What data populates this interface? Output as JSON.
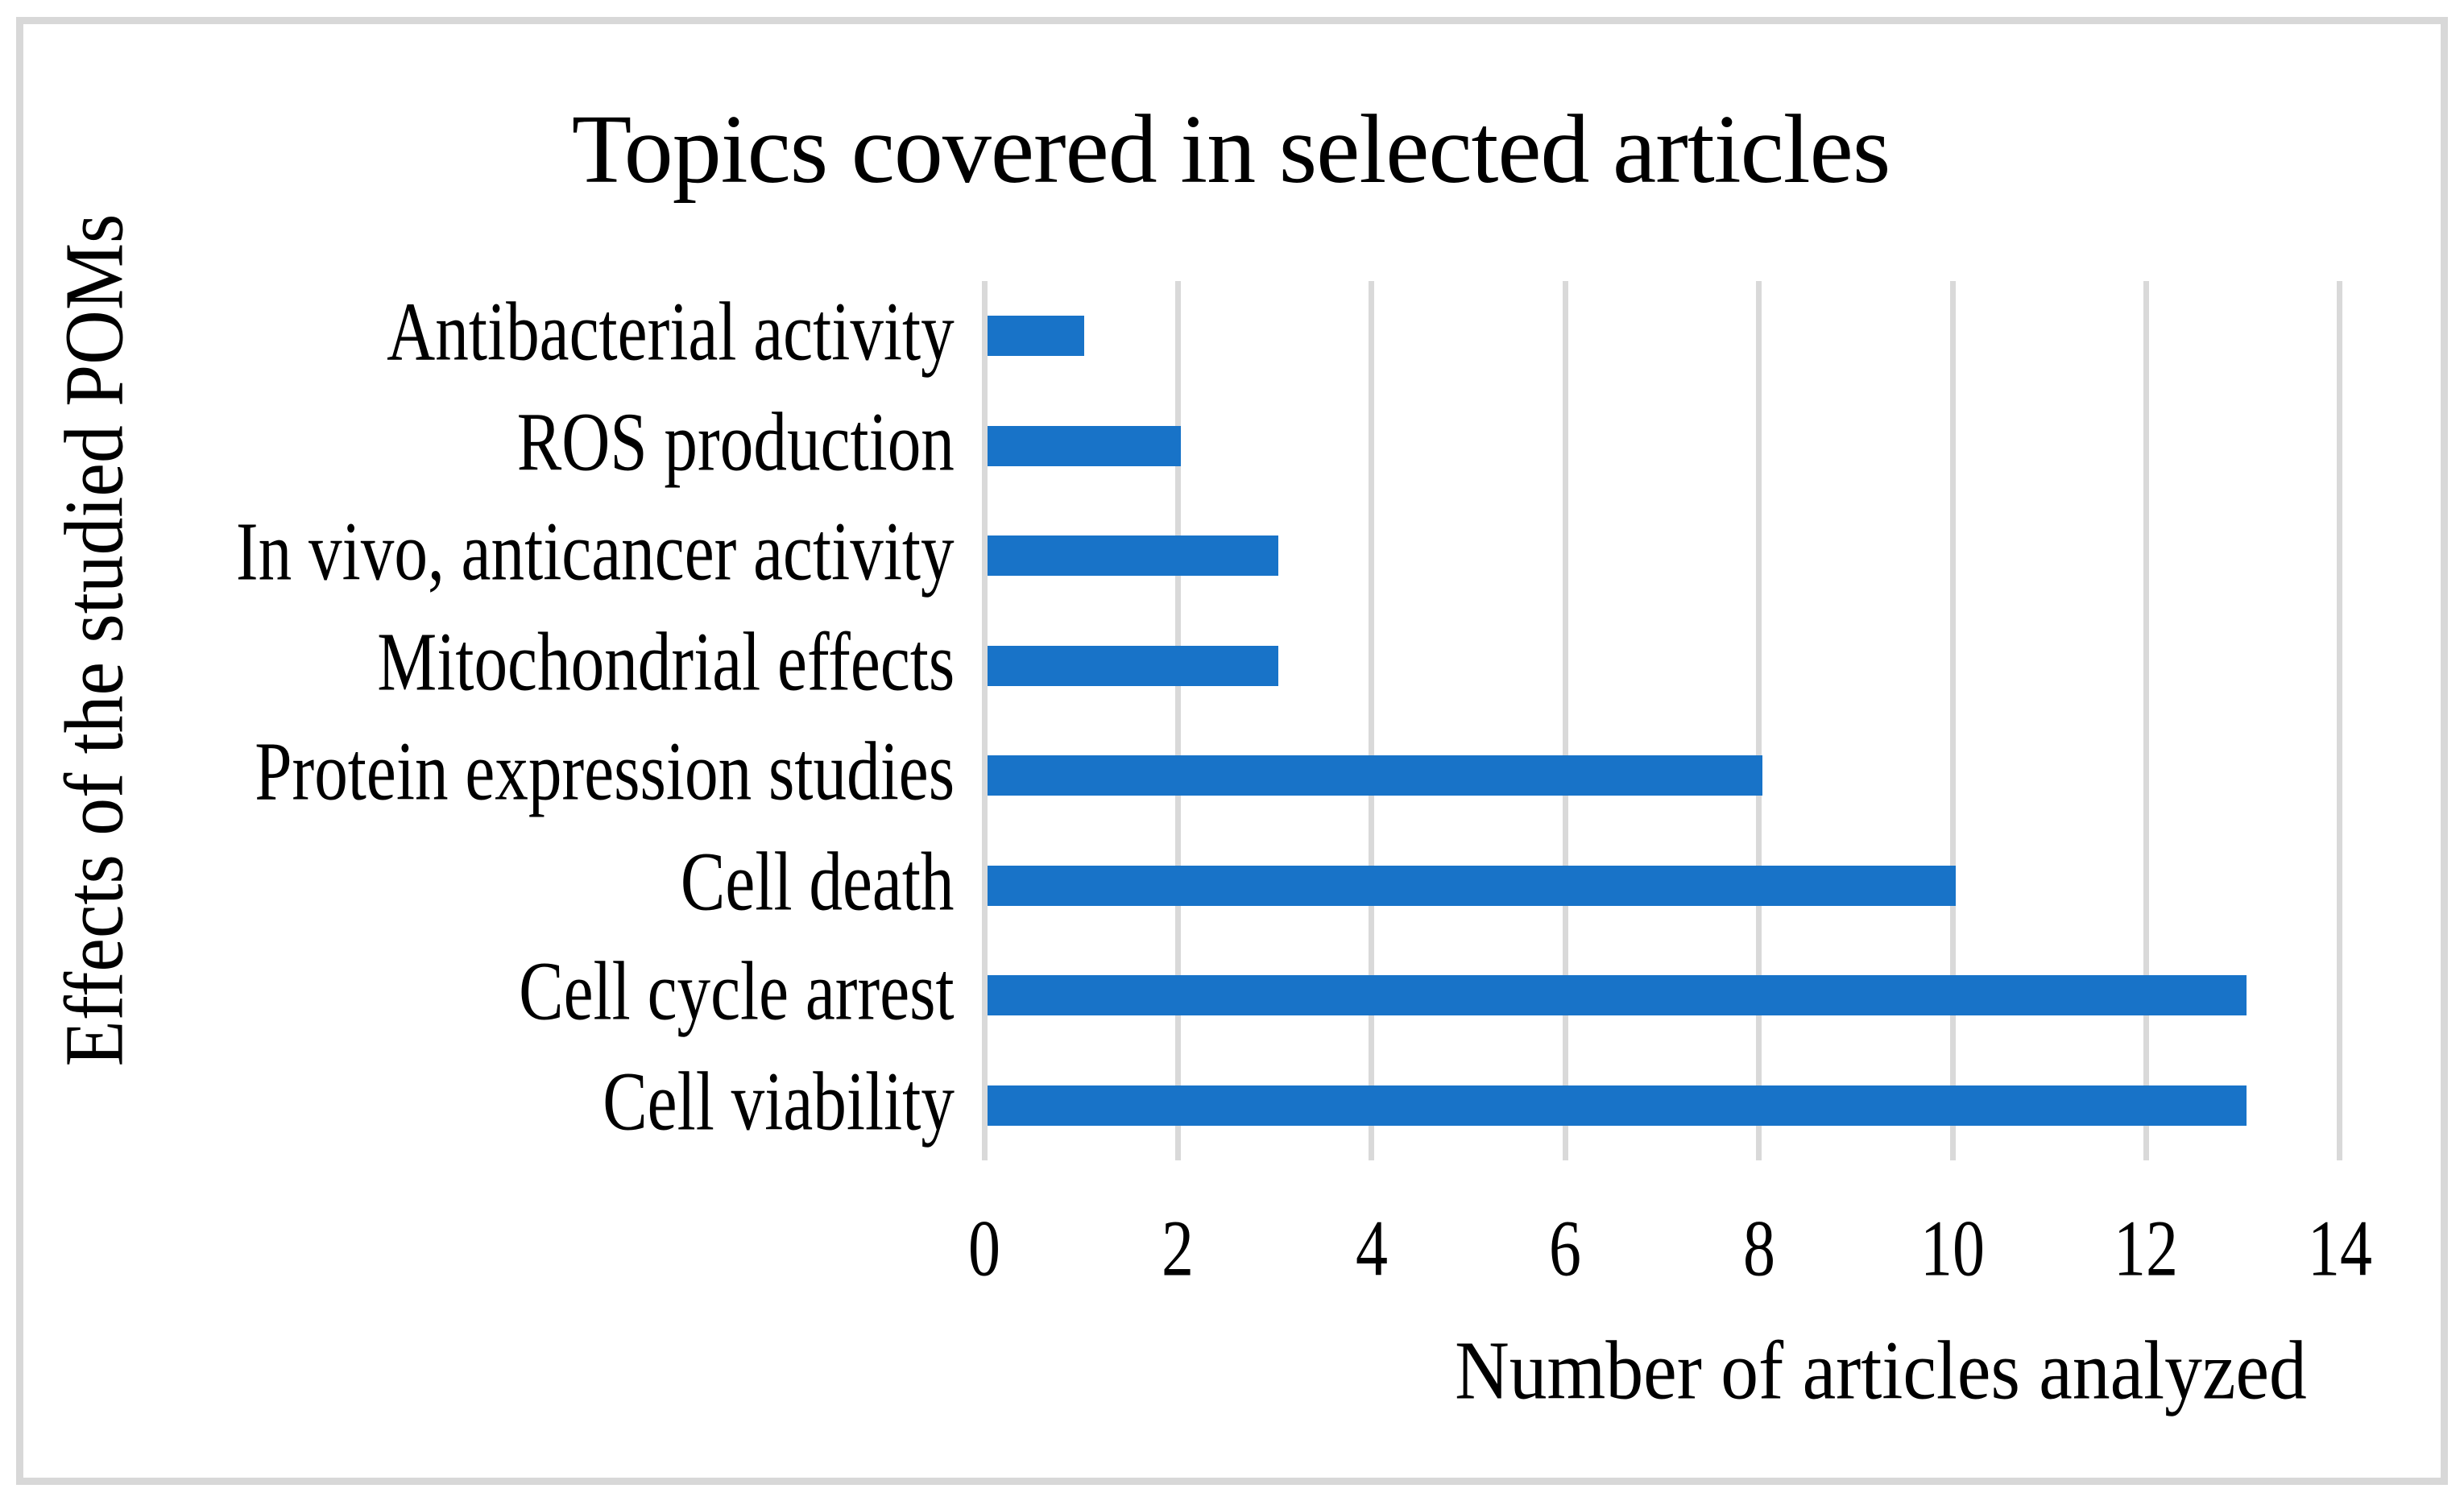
{
  "figure": {
    "background": "#FFFFFF",
    "border_color": "#D8D8D8"
  },
  "chart_data": {
    "type": "bar",
    "orientation": "horizontal",
    "title": "Topics covered in selected articles",
    "xlabel": "Number of articles analyzed",
    "ylabel": "Effects of the studied POMs",
    "categories": [
      "Antibacterial activity",
      "ROS production",
      "In vivo, anticancer activity",
      "Mitochondrial effects",
      "Protein expression studies",
      "Cell death",
      "Cell cycle arrest",
      "Cell viability"
    ],
    "values": [
      1,
      2,
      3,
      3,
      8,
      10,
      13,
      13
    ],
    "x_ticks": [
      "0",
      "2",
      "4",
      "6",
      "8",
      "10",
      "12",
      "14"
    ],
    "xlim": [
      0,
      14
    ],
    "grid": true,
    "legend": "none",
    "bar_color": "#1873C8",
    "gridline_color": "#D9D9D9",
    "text_color": "#000000"
  }
}
